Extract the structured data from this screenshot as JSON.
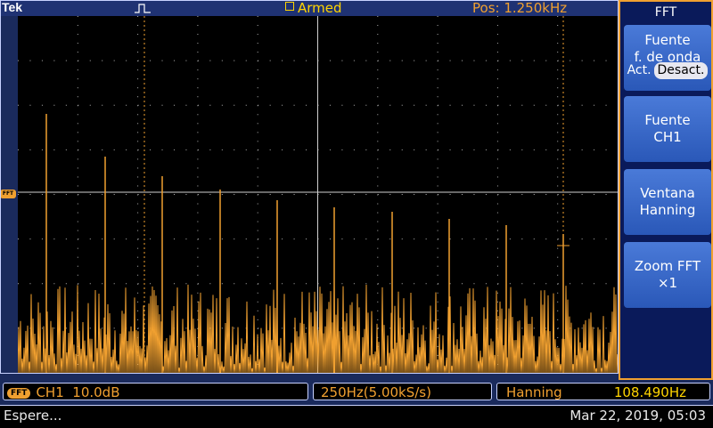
{
  "header": {
    "brand": "Tek",
    "status": "Armed",
    "position": "Pos: 1.250kHz"
  },
  "menu": {
    "title": "FFT",
    "buttons": [
      {
        "line1": "Fuente",
        "line2": "f. de onda",
        "opt_on": "Act.",
        "opt_off": "Desact."
      },
      {
        "line1": "Fuente",
        "line2": "CH1"
      },
      {
        "line1": "Ventana",
        "line2": "Hanning"
      },
      {
        "line1": "Zoom FFT",
        "line2": "×1"
      }
    ]
  },
  "readouts": {
    "fft_badge": "FFT",
    "channel": "CH1",
    "scale": "10.0dB",
    "span": "250Hz(5.00kS/s)",
    "window": "Hanning",
    "cursor_freq": "108.490Hz"
  },
  "status_bar": {
    "message": "Espere...",
    "datetime": "Mar 22, 2019, 05:03"
  },
  "left_marker": "FFT",
  "colors": {
    "trace": "#f0a030",
    "accent": "#ffd400",
    "grid": "#b0b0b0"
  }
}
